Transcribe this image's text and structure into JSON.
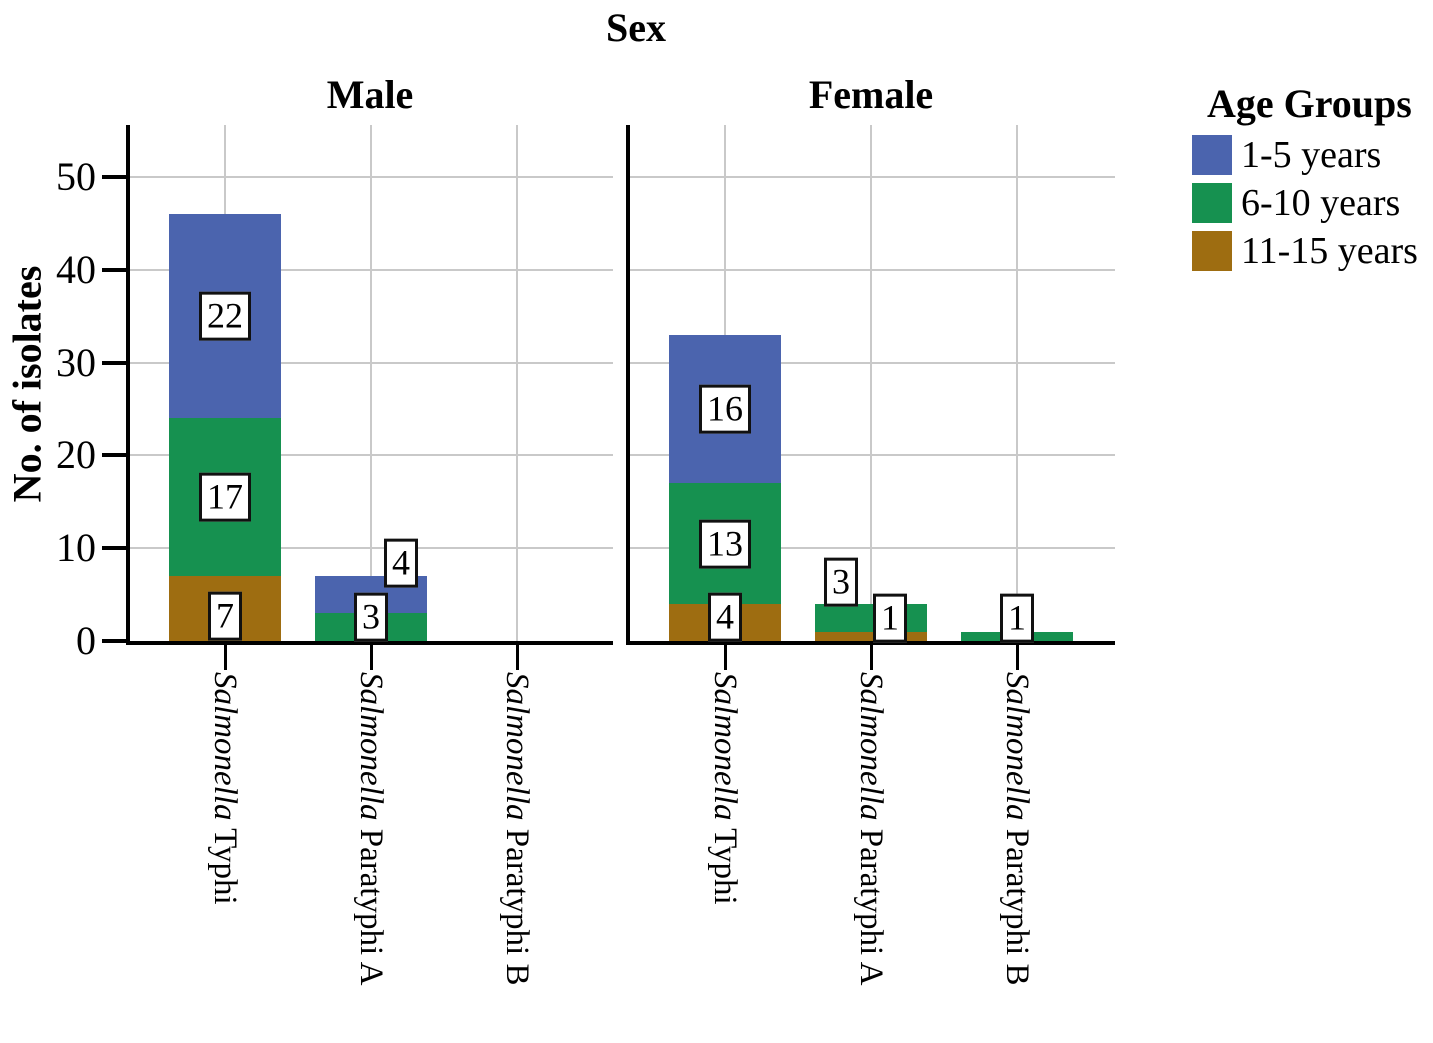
{
  "chart_data": {
    "type": "bar",
    "stacked": true,
    "title": "Sex",
    "ylabel": "No. of isolates",
    "xlabel": "",
    "yticks": [
      0,
      10,
      20,
      30,
      40,
      50
    ],
    "ylim": [
      0,
      55.5
    ],
    "grid": true,
    "legend": {
      "title": "Age Groups",
      "position": "right",
      "items": [
        {
          "label": "1-5 years",
          "color": "#4b64ae"
        },
        {
          "label": "6-10 years",
          "color": "#169150"
        },
        {
          "label": "11-15 years",
          "color": "#9e6d11"
        }
      ]
    },
    "colors": {
      "axis": "#000000",
      "grid": "#c9c9c9",
      "label_box_border": "#111111",
      "background": "#ffffff"
    },
    "panels": [
      {
        "title": "Male",
        "categories": [
          {
            "name_italic": "Salmonella",
            "name_rest": " Typhi",
            "segments": [
              {
                "group": "11-15 years",
                "value": 7,
                "label_dy": 7
              },
              {
                "group": "6-10 years",
                "value": 17
              },
              {
                "group": "1-5 years",
                "value": 22
              }
            ]
          },
          {
            "name_italic": "Salmonella",
            "name_rest": " Paratyphi A",
            "segments": [
              {
                "group": "6-10 years",
                "value": 3,
                "label_dy": -10
              },
              {
                "group": "1-5 years",
                "value": 4,
                "label_dx": 30,
                "label_dy": -32
              }
            ]
          },
          {
            "name_italic": "Salmonella",
            "name_rest": " Paratyphi B",
            "segments": []
          }
        ]
      },
      {
        "title": "Female",
        "categories": [
          {
            "name_italic": "Salmonella",
            "name_rest": " Typhi",
            "segments": [
              {
                "group": "11-15 years",
                "value": 4,
                "label_dy": -6
              },
              {
                "group": "6-10 years",
                "value": 13
              },
              {
                "group": "1-5 years",
                "value": 16
              }
            ]
          },
          {
            "name_italic": "Salmonella",
            "name_rest": " Paratyphi A",
            "segments": [
              {
                "group": "11-15 years",
                "value": 1,
                "label_dx": 19,
                "label_dy": -19
              },
              {
                "group": "6-10 years",
                "value": 3,
                "label_dx": -30,
                "label_dy": -36
              }
            ]
          },
          {
            "name_italic": "Salmonella",
            "name_rest": " Paratyphi B",
            "segments": [
              {
                "group": "6-10 years",
                "value": 1,
                "label_dy": -19
              }
            ]
          }
        ]
      }
    ]
  }
}
